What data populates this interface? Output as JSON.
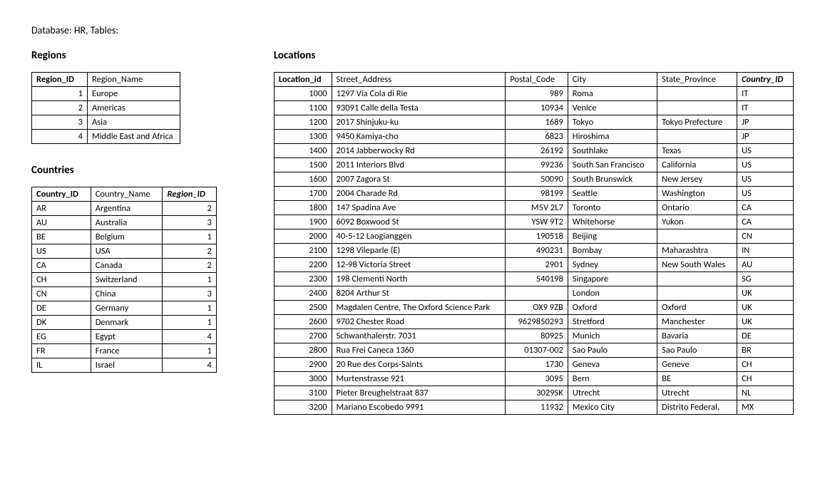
{
  "page": {
    "title": "Database: HR, Tables:"
  },
  "regions": {
    "heading": "Regions",
    "columns": [
      "Region_ID",
      "Region_Name"
    ],
    "col_align": [
      "right",
      "left"
    ],
    "header_style": [
      "bold",
      "plain"
    ],
    "rows": [
      [
        "1",
        "Europe"
      ],
      [
        "2",
        "Americas"
      ],
      [
        "3",
        "Asia"
      ],
      [
        "4",
        "Middle East and Africa"
      ]
    ]
  },
  "countries": {
    "heading": "Countries",
    "columns": [
      "Country_ID",
      "Country_Name",
      "Region_ID"
    ],
    "col_align": [
      "left",
      "left",
      "right"
    ],
    "header_style": [
      "bold",
      "plain",
      "fk"
    ],
    "rows": [
      [
        "AR",
        "Argentina",
        "2"
      ],
      [
        "AU",
        "Australia",
        "3"
      ],
      [
        "BE",
        "Belgium",
        "1"
      ],
      [
        "US",
        "USA",
        "2"
      ],
      [
        "CA",
        "Canada",
        "2"
      ],
      [
        "CH",
        "Switzerland",
        "1"
      ],
      [
        "CN",
        "China",
        "3"
      ],
      [
        "DE",
        "Germany",
        "1"
      ],
      [
        "DK",
        "Denmark",
        "1"
      ],
      [
        "EG",
        "Egypt",
        "4"
      ],
      [
        "FR",
        "France",
        "1"
      ],
      [
        "IL",
        "Israel",
        "4"
      ]
    ]
  },
  "locations": {
    "heading": "Locations",
    "columns": [
      "Location_id",
      "Street_Address",
      "Postal_Code",
      "City",
      "State_Province",
      "Country_ID"
    ],
    "col_align": [
      "right",
      "left",
      "right",
      "left",
      "left",
      "left"
    ],
    "header_style": [
      "bold",
      "plain",
      "plain",
      "plain",
      "plain",
      "fk"
    ],
    "rows": [
      [
        "1000",
        "1297 Via Cola di Rie",
        "989",
        "Roma",
        "",
        "IT"
      ],
      [
        "1100",
        "93091 Calle della Testa",
        "10934",
        "Venice",
        "",
        "IT"
      ],
      [
        "1200",
        "2017 Shinjuku-ku",
        "1689",
        "Tokyo",
        "Tokyo Prefecture",
        "JP"
      ],
      [
        "1300",
        "9450 Kamiya-cho",
        "6823",
        "Hiroshima",
        "",
        "JP"
      ],
      [
        "1400",
        "2014 Jabberwocky Rd",
        "26192",
        "Southlake",
        "Texas",
        "US"
      ],
      [
        "1500",
        "2011 Interiors Blvd",
        "99236",
        "South San Francisco",
        "California",
        "US"
      ],
      [
        "1600",
        "2007 Zagora St",
        "50090",
        "South Brunswick",
        "New Jersey",
        "US"
      ],
      [
        "1700",
        "2004 Charade Rd",
        "98199",
        "Seattle",
        "Washington",
        "US"
      ],
      [
        "1800",
        "147 Spadina Ave",
        "M5V 2L7",
        "Toronto",
        "Ontario",
        "CA"
      ],
      [
        "1900",
        "6092 Boxwood St",
        "YSW 9T2",
        "Whitehorse",
        "Yukon",
        "CA"
      ],
      [
        "2000",
        "40-5-12 Laogianggen",
        "190518",
        "Beijing",
        "",
        "CN"
      ],
      [
        "2100",
        "1298 Vileparle (E)",
        "490231",
        "Bombay",
        "Maharashtra",
        "IN"
      ],
      [
        "2200",
        "12-98 Victoria Street",
        "2901",
        "Sydney",
        "New South Wales",
        "AU"
      ],
      [
        "2300",
        "198 Clementi North",
        "540198",
        "Singapore",
        "",
        "SG"
      ],
      [
        "2400",
        "8204 Arthur St",
        "",
        "London",
        "",
        "UK"
      ],
      [
        "2500",
        "Magdalen Centre, The Oxford Science Park",
        "OX9 9ZB",
        "Oxford",
        "Oxford",
        "UK"
      ],
      [
        "2600",
        "9702 Chester Road",
        "9629850293",
        "Stretford",
        "Manchester",
        "UK"
      ],
      [
        "2700",
        "Schwanthalerstr. 7031",
        "80925",
        "Munich",
        "Bavaria",
        "DE"
      ],
      [
        "2800",
        "Rua Frei Caneca 1360",
        "01307-002",
        "Sao Paulo",
        "Sao Paulo",
        "BR"
      ],
      [
        "2900",
        "20 Rue des Corps-Saints",
        "1730",
        "Geneva",
        "Geneve",
        "CH"
      ],
      [
        "3000",
        "Murtenstrasse 921",
        "3095",
        "Bern",
        "BE",
        "CH"
      ],
      [
        "3100",
        "Pieter Breughelstraat 837",
        "3029SK",
        "Utrecht",
        "Utrecht",
        "NL"
      ],
      [
        "3200",
        "Mariano Escobedo 9991",
        "11932",
        "Mexico City",
        "Distrito Federal,",
        "MX"
      ]
    ]
  },
  "style": {
    "font_family": "Calibri",
    "body_font_size_pt": 10,
    "heading_font_size_pt": 11,
    "border_color": "#000000",
    "background_color": "#ffffff",
    "text_color": "#000000"
  }
}
